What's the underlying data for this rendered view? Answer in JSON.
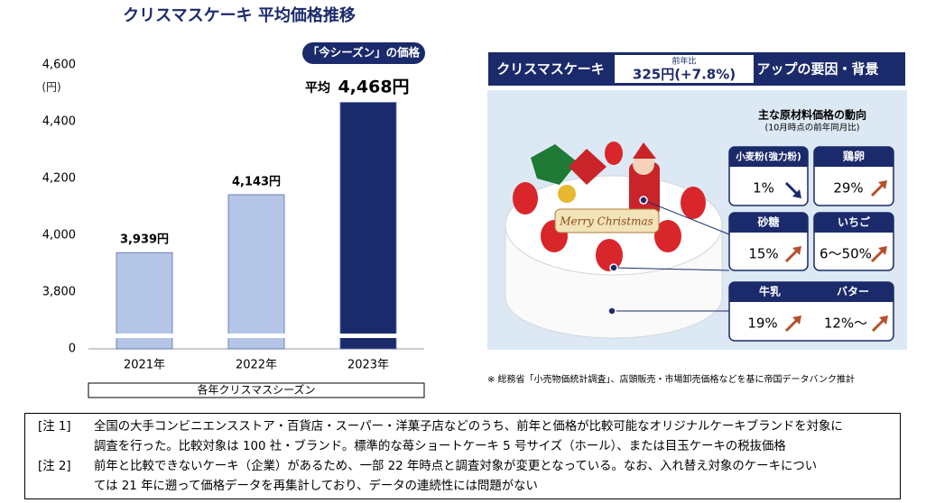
{
  "chart_data": {
    "type": "bar",
    "title": "クリスマスケーキ 平均価格推移",
    "y_label": "(円)",
    "categories": [
      "2021年",
      "2022年",
      "2023年"
    ],
    "values": [
      3939,
      4143,
      4468
    ],
    "value_labels": [
      "3,939円",
      "4,143円",
      "4,468円"
    ],
    "colors": [
      "#b4c5e6",
      "#b4c5e6",
      "#1b2a6b"
    ],
    "ylim": [
      3800,
      4600
    ],
    "yticks": [
      0,
      {
        "value": 3800,
        "label": "3,800"
      },
      {
        "value": 4000,
        "label": "4,000"
      },
      {
        "value": 4200,
        "label": "4,200"
      },
      {
        "value": 4400,
        "label": "4,400"
      },
      {
        "value": 4600,
        "label": "4,600"
      }
    ],
    "axis_break": true,
    "grid": false,
    "badge": "「今シーズン」の価格",
    "highlight_prefix": "平均",
    "x_label": "各年クリスマスシーズン"
  },
  "panel": {
    "left": "クリスマスケーキ",
    "change_caption": "前年比",
    "change": "325円(+7.8%)",
    "right": "アップの要因・背景",
    "plaque": "Merry Christmas",
    "materials_title": "主な原材料価格の動向",
    "materials_subtitle": "(10月時点の前年同月比)",
    "materials": [
      {
        "name": "小麦粉(強力粉)",
        "change": "1%"
      },
      {
        "name": "鶏卵",
        "change": "29%"
      },
      {
        "name": "砂糖",
        "change": "15%"
      },
      {
        "name": "いちご",
        "change": "6～50%"
      },
      {
        "name": "牛乳",
        "change": "19%"
      },
      {
        "name": "バター",
        "change": "12%～"
      }
    ],
    "source": "※ 総務省「小売物価統計調査」、店頭販売・市場卸売価格などを基に帝国データバンク推計"
  },
  "notes": [
    {
      "label": "[注 1]",
      "lines": [
        "全国の大手コンビニエンスストア・百貨店・スーパー・洋菓子店などのうち、前年と価格が比較可能なオリジナルケーキブランドを対象に",
        "調査を行った。比較対象は 100 社・ブランド。標準的な苺ショートケーキ 5 号サイズ（ホール）、または目玉ケーキの税抜価格"
      ]
    },
    {
      "label": "[注 2]",
      "lines": [
        "前年と比較できないケーキ（企業）があるため、一部 22 年時点と調査対象が変更となっている。なお、入れ替え対象のケーキについ",
        "ては 21 年に遡って価格データを再集計しており、データの連続性には問題がない"
      ]
    }
  ]
}
